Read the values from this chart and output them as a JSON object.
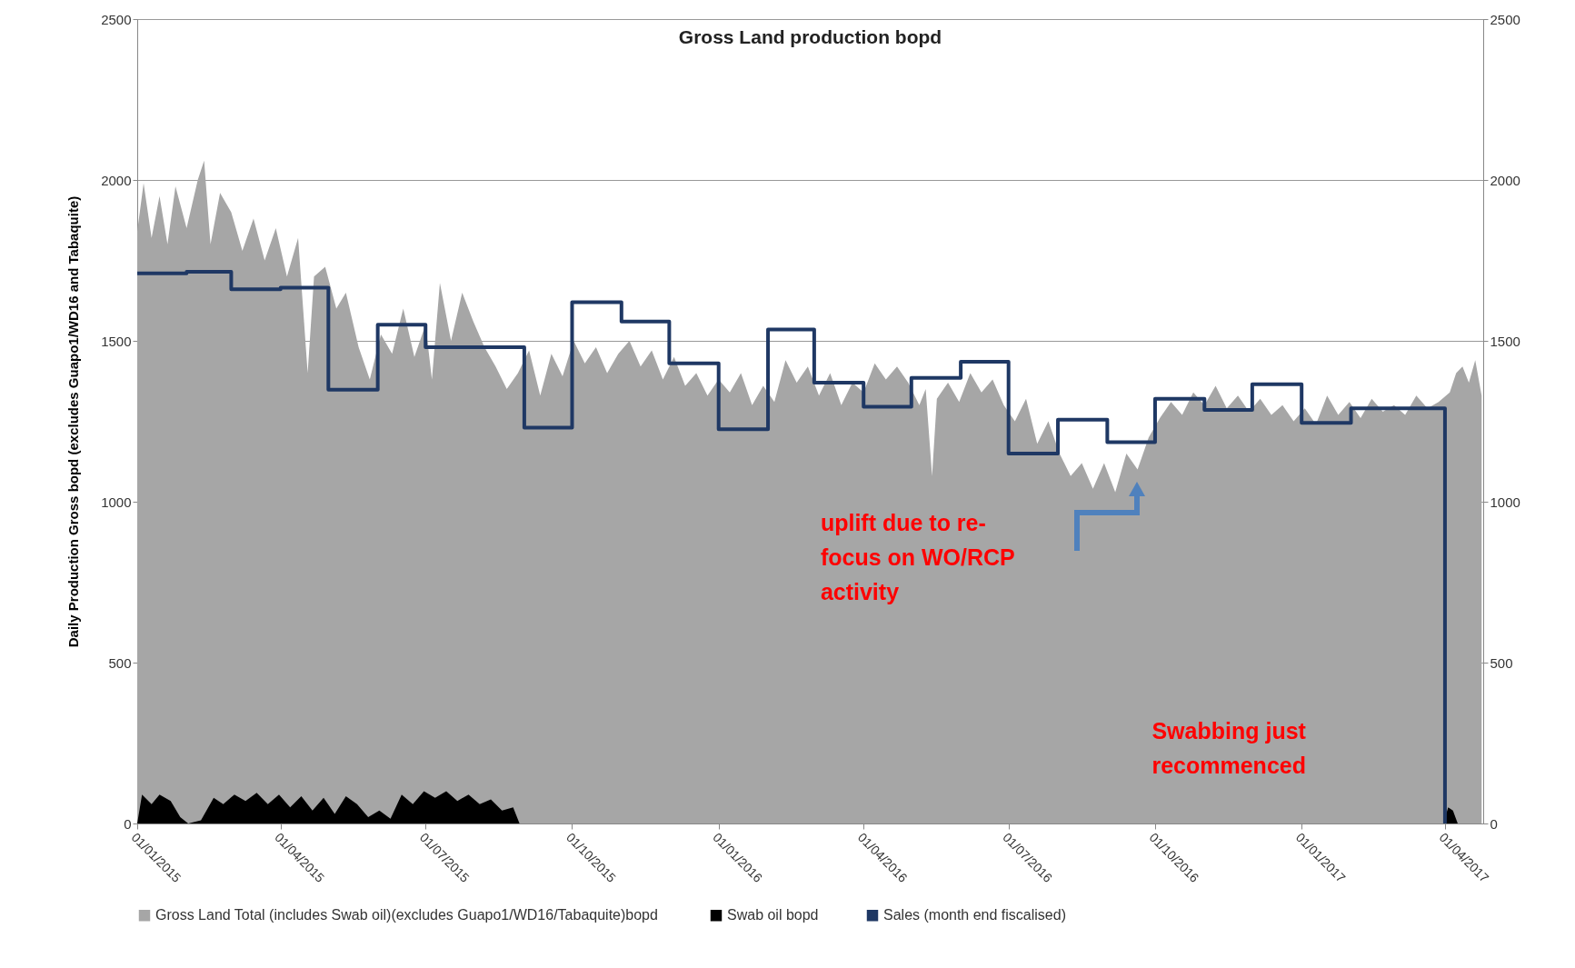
{
  "chart_data": {
    "type": "area",
    "title": "Gross Land production bopd",
    "ylabel": "Daily Production Gross bopd (excludes Guapo1/WD16 and Tabaquite)",
    "xlim": [
      "2015-01-01",
      "2017-04-25"
    ],
    "xticks": [
      {
        "value": "2015-01-01",
        "label": "01/01/2015"
      },
      {
        "value": "2015-04-01",
        "label": "01/04/2015"
      },
      {
        "value": "2015-07-01",
        "label": "01/07/2015"
      },
      {
        "value": "2015-10-01",
        "label": "01/10/2015"
      },
      {
        "value": "2016-01-01",
        "label": "01/01/2016"
      },
      {
        "value": "2016-04-01",
        "label": "01/04/2016"
      },
      {
        "value": "2016-07-01",
        "label": "01/07/2016"
      },
      {
        "value": "2016-10-01",
        "label": "01/10/2016"
      },
      {
        "value": "2017-01-01",
        "label": "01/01/2017"
      },
      {
        "value": "2017-04-01",
        "label": "01/04/2017"
      }
    ],
    "ylim": [
      0,
      2500
    ],
    "yticks": [
      0,
      500,
      1000,
      1500,
      2000,
      2500
    ],
    "y2lim": [
      0,
      2500
    ],
    "y2ticks": [
      0,
      500,
      1000,
      1500,
      2000,
      2500
    ],
    "grid": "y",
    "legend": "bottom",
    "series": [
      {
        "name": "Gross  Land Total (includes Swab oil)(excludes Guapo1/WD16/Tabaquite)bopd",
        "color": "#a6a6a6",
        "x": [
          "2015-01-01",
          "2015-01-05",
          "2015-01-10",
          "2015-01-15",
          "2015-01-20",
          "2015-01-25",
          "2015-02-01",
          "2015-02-08",
          "2015-02-12",
          "2015-02-16",
          "2015-02-22",
          "2015-03-01",
          "2015-03-08",
          "2015-03-15",
          "2015-03-22",
          "2015-03-29",
          "2015-04-05",
          "2015-04-12",
          "2015-04-18",
          "2015-04-22",
          "2015-04-29",
          "2015-05-06",
          "2015-05-12",
          "2015-05-20",
          "2015-05-27",
          "2015-06-03",
          "2015-06-10",
          "2015-06-17",
          "2015-06-24",
          "2015-07-01",
          "2015-07-05",
          "2015-07-10",
          "2015-07-17",
          "2015-07-24",
          "2015-07-31",
          "2015-08-07",
          "2015-08-14",
          "2015-08-21",
          "2015-08-28",
          "2015-09-04",
          "2015-09-11",
          "2015-09-18",
          "2015-09-25",
          "2015-10-02",
          "2015-10-09",
          "2015-10-16",
          "2015-10-23",
          "2015-10-30",
          "2015-11-06",
          "2015-11-13",
          "2015-11-20",
          "2015-11-27",
          "2015-12-04",
          "2015-12-11",
          "2015-12-18",
          "2015-12-25",
          "2016-01-01",
          "2016-01-08",
          "2016-01-15",
          "2016-01-22",
          "2016-01-29",
          "2016-02-05",
          "2016-02-12",
          "2016-02-19",
          "2016-02-26",
          "2016-03-04",
          "2016-03-11",
          "2016-03-18",
          "2016-03-25",
          "2016-04-01",
          "2016-04-08",
          "2016-04-15",
          "2016-04-22",
          "2016-04-29",
          "2016-05-06",
          "2016-05-10",
          "2016-05-14",
          "2016-05-17",
          "2016-05-24",
          "2016-05-31",
          "2016-06-07",
          "2016-06-14",
          "2016-06-21",
          "2016-06-28",
          "2016-07-05",
          "2016-07-12",
          "2016-07-19",
          "2016-07-26",
          "2016-08-02",
          "2016-08-09",
          "2016-08-16",
          "2016-08-23",
          "2016-08-30",
          "2016-09-06",
          "2016-09-13",
          "2016-09-20",
          "2016-09-27",
          "2016-10-04",
          "2016-10-11",
          "2016-10-18",
          "2016-10-25",
          "2016-11-01",
          "2016-11-08",
          "2016-11-15",
          "2016-11-22",
          "2016-11-29",
          "2016-12-06",
          "2016-12-13",
          "2016-12-20",
          "2016-12-27",
          "2017-01-03",
          "2017-01-10",
          "2017-01-17",
          "2017-01-24",
          "2017-01-31",
          "2017-02-07",
          "2017-02-14",
          "2017-02-21",
          "2017-02-28",
          "2017-03-07",
          "2017-03-14",
          "2017-03-21",
          "2017-03-28",
          "2017-04-04",
          "2017-04-08",
          "2017-04-12",
          "2017-04-16",
          "2017-04-20",
          "2017-04-24"
        ],
        "values": [
          1840,
          1990,
          1820,
          1950,
          1800,
          1980,
          1850,
          2000,
          2060,
          1800,
          1960,
          1900,
          1780,
          1880,
          1750,
          1850,
          1700,
          1820,
          1400,
          1700,
          1730,
          1600,
          1650,
          1480,
          1380,
          1520,
          1460,
          1600,
          1450,
          1550,
          1380,
          1680,
          1500,
          1650,
          1560,
          1480,
          1420,
          1350,
          1400,
          1470,
          1330,
          1460,
          1390,
          1500,
          1430,
          1480,
          1400,
          1460,
          1500,
          1420,
          1470,
          1380,
          1450,
          1360,
          1400,
          1330,
          1380,
          1340,
          1400,
          1300,
          1360,
          1310,
          1440,
          1370,
          1420,
          1330,
          1400,
          1300,
          1370,
          1340,
          1430,
          1380,
          1420,
          1370,
          1300,
          1350,
          1080,
          1320,
          1370,
          1310,
          1400,
          1340,
          1380,
          1300,
          1250,
          1320,
          1180,
          1250,
          1150,
          1080,
          1120,
          1040,
          1120,
          1030,
          1150,
          1100,
          1200,
          1260,
          1310,
          1270,
          1340,
          1300,
          1360,
          1290,
          1330,
          1280,
          1320,
          1270,
          1300,
          1250,
          1290,
          1240,
          1330,
          1270,
          1310,
          1260,
          1320,
          1280,
          1300,
          1270,
          1330,
          1290,
          1310,
          1340,
          1400,
          1420,
          1370,
          1440,
          1330
        ]
      },
      {
        "name": "Swab oil bopd",
        "color": "#000000",
        "x": [
          "2015-01-01",
          "2015-01-04",
          "2015-01-10",
          "2015-01-15",
          "2015-01-22",
          "2015-01-28",
          "2015-02-02",
          "2015-02-10",
          "2015-02-18",
          "2015-02-24",
          "2015-03-03",
          "2015-03-10",
          "2015-03-17",
          "2015-03-24",
          "2015-03-31",
          "2015-04-07",
          "2015-04-14",
          "2015-04-21",
          "2015-04-28",
          "2015-05-05",
          "2015-05-12",
          "2015-05-19",
          "2015-05-26",
          "2015-06-02",
          "2015-06-09",
          "2015-06-16",
          "2015-06-23",
          "2015-06-30",
          "2015-07-07",
          "2015-07-14",
          "2015-07-21",
          "2015-07-28",
          "2015-08-04",
          "2015-08-11",
          "2015-08-18",
          "2015-08-25",
          "2015-08-29",
          "2017-03-31",
          "2017-04-03",
          "2017-04-06",
          "2017-04-09",
          "2017-04-25"
        ],
        "values": [
          0,
          90,
          60,
          90,
          70,
          20,
          0,
          10,
          80,
          60,
          90,
          70,
          95,
          60,
          90,
          50,
          85,
          40,
          80,
          30,
          85,
          60,
          20,
          40,
          15,
          90,
          60,
          100,
          80,
          100,
          70,
          90,
          60,
          75,
          40,
          50,
          0,
          0,
          50,
          40,
          0,
          0
        ]
      },
      {
        "name": "Sales (month end fiscalised)",
        "type": "step",
        "color": "#1f3864",
        "x": [
          "2015-01-01",
          "2015-02-01",
          "2015-03-01",
          "2015-04-01",
          "2015-05-01",
          "2015-06-01",
          "2015-07-01",
          "2015-08-01",
          "2015-09-01",
          "2015-10-01",
          "2015-11-01",
          "2015-12-01",
          "2016-01-01",
          "2016-02-01",
          "2016-03-01",
          "2016-04-01",
          "2016-05-01",
          "2016-06-01",
          "2016-07-01",
          "2016-08-01",
          "2016-09-01",
          "2016-10-01",
          "2016-11-01",
          "2016-12-01",
          "2017-01-01",
          "2017-02-01",
          "2017-03-01",
          "2017-04-01"
        ],
        "values": [
          1710,
          1715,
          1660,
          1665,
          1348,
          1550,
          1480,
          1480,
          1230,
          1620,
          1560,
          1430,
          1225,
          1535,
          1370,
          1295,
          1385,
          1435,
          1150,
          1255,
          1185,
          1320,
          1285,
          1365,
          1245,
          1290,
          1290,
          0
        ]
      }
    ],
    "annotations": [
      "uplift due to re-focus on WO/RCP activity",
      "Swabbing just recommenced"
    ]
  }
}
